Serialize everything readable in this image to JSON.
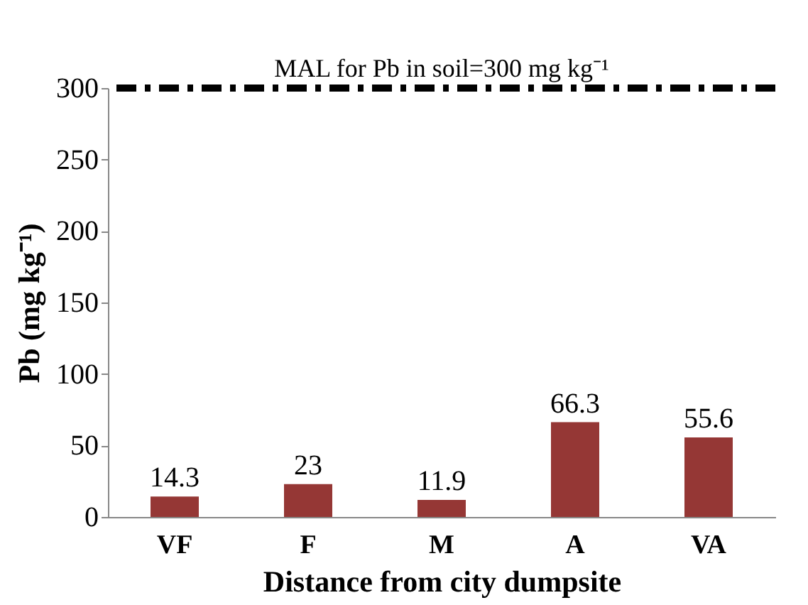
{
  "chart_data": {
    "type": "bar",
    "xlabel": "Distance from city dumpsite",
    "ylabel": "Pb (mg kg⁻¹)",
    "categories": [
      "VF",
      "F",
      "M",
      "A",
      "VA"
    ],
    "values": [
      14.3,
      23,
      11.9,
      66.3,
      55.6
    ],
    "color": "#953735",
    "ylim": [
      0,
      300
    ],
    "yticks": [
      0,
      50,
      100,
      150,
      200,
      250,
      300
    ],
    "grid": false,
    "data_labels": true,
    "ref_lines": [
      {
        "axis": "y",
        "value": 300,
        "label": "MAL for Pb in soil=300  mg kg⁻¹",
        "color": "#000000",
        "line_style": "dashed"
      }
    ]
  }
}
